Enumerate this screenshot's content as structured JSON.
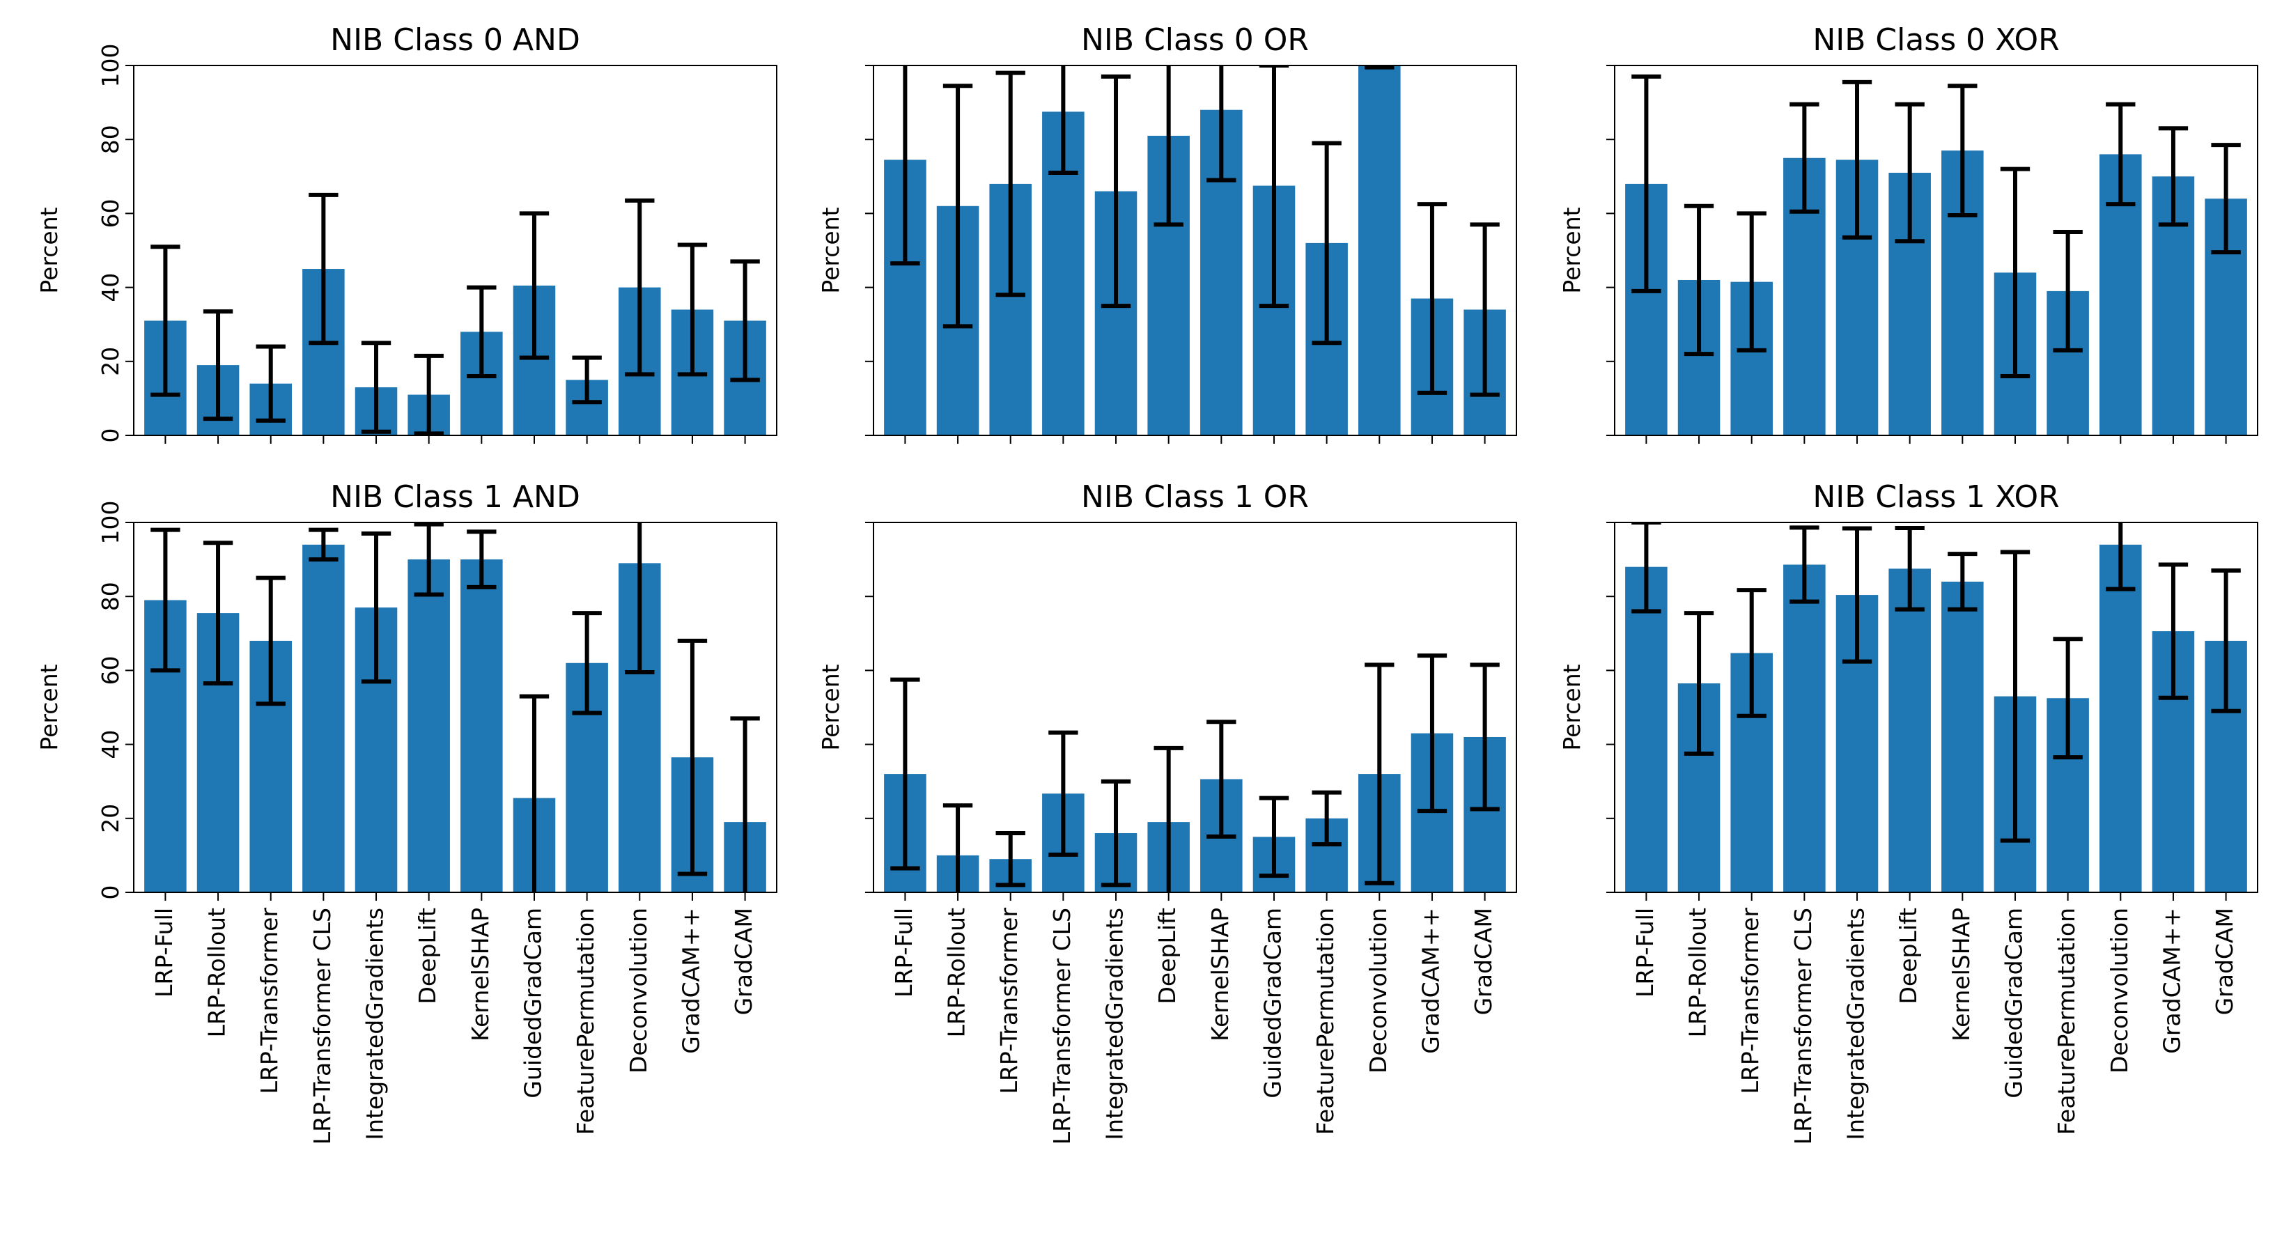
{
  "chart_data": [
    {
      "type": "bar",
      "title": "NIB Class 0 AND",
      "ylabel": "Percent",
      "color": "#1f77b4",
      "categories": [
        "LRP-Full",
        "LRP-Rollout",
        "LRP-Transformer",
        "LRP-Transformer CLS",
        "IntegratedGradients",
        "DeepLift",
        "KernelSHAP",
        "GuidedGradCam",
        "FeaturePermutation",
        "Deconvolution",
        "GradCAM++",
        "GradCAM"
      ],
      "values": [
        31,
        19,
        14,
        45,
        13,
        11,
        28,
        40.5,
        15,
        40,
        34,
        31
      ],
      "errors": [
        20,
        14.5,
        10,
        20,
        12,
        10.5,
        12,
        19.5,
        6,
        23.5,
        17.5,
        16
      ],
      "ylim": [
        0,
        100
      ],
      "yticks": [
        0,
        20,
        40,
        60,
        80,
        100
      ]
    },
    {
      "type": "bar",
      "title": "NIB Class 0 OR",
      "ylabel": "Percent",
      "color": "#1f77b4",
      "categories": [
        "LRP-Full",
        "LRP-Rollout",
        "LRP-Transformer",
        "LRP-Transformer CLS",
        "IntegratedGradients",
        "DeepLift",
        "KernelSHAP",
        "GuidedGradCam",
        "FeaturePermutation",
        "Deconvolution",
        "GradCAM++",
        "GradCAM"
      ],
      "values": [
        74.5,
        62,
        68,
        87.5,
        66,
        81,
        88,
        67.5,
        52,
        100,
        37,
        34
      ],
      "errors": [
        28,
        32.5,
        30,
        16.5,
        31,
        24,
        19,
        32.5,
        27,
        0.5,
        25.5,
        23
      ],
      "ylim": [
        0,
        100
      ],
      "yticks": [
        0,
        20,
        40,
        60,
        80,
        100
      ]
    },
    {
      "type": "bar",
      "title": "NIB Class 0 XOR",
      "ylabel": "Percent",
      "color": "#1f77b4",
      "categories": [
        "LRP-Full",
        "LRP-Rollout",
        "LRP-Transformer",
        "LRP-Transformer CLS",
        "IntegratedGradients",
        "DeepLift",
        "KernelSHAP",
        "GuidedGradCam",
        "FeaturePermutation",
        "Deconvolution",
        "GradCAM++",
        "GradCAM"
      ],
      "values": [
        68,
        42,
        41.5,
        75,
        74.5,
        71,
        77,
        44,
        39,
        76,
        70,
        64
      ],
      "errors": [
        29,
        20,
        18.5,
        14.5,
        21,
        18.5,
        17.5,
        28,
        16,
        13.5,
        13,
        14.5
      ],
      "ylim": [
        0,
        100
      ],
      "yticks": [
        0,
        20,
        40,
        60,
        80,
        100
      ]
    },
    {
      "type": "bar",
      "title": "NIB Class 1 AND",
      "ylabel": "Percent",
      "color": "#1f77b4",
      "categories": [
        "LRP-Full",
        "LRP-Rollout",
        "LRP-Transformer",
        "LRP-Transformer CLS",
        "IntegratedGradients",
        "DeepLift",
        "KernelSHAP",
        "GuidedGradCam",
        "FeaturePermutation",
        "Deconvolution",
        "GradCAM++",
        "GradCAM"
      ],
      "values": [
        79,
        75.5,
        68,
        94,
        77,
        90,
        90,
        25.5,
        62,
        89,
        36.5,
        19
      ],
      "errors": [
        19,
        19,
        17,
        4,
        20,
        9.5,
        7.5,
        27.5,
        13.5,
        29.5,
        31.5,
        28
      ],
      "ylim": [
        0,
        100
      ],
      "yticks": [
        0,
        20,
        40,
        60,
        80,
        100
      ]
    },
    {
      "type": "bar",
      "title": "NIB Class 1 OR",
      "ylabel": "Percent",
      "color": "#1f77b4",
      "categories": [
        "LRP-Full",
        "LRP-Rollout",
        "LRP-Transformer",
        "LRP-Transformer CLS",
        "IntegratedGradients",
        "DeepLift",
        "KernelSHAP",
        "GuidedGradCam",
        "FeaturePermutation",
        "Deconvolution",
        "GradCAM++",
        "GradCAM"
      ],
      "values": [
        32,
        10,
        9,
        26.7,
        16,
        19,
        30.6,
        15,
        20,
        32,
        43,
        42
      ],
      "errors": [
        25.5,
        13.5,
        7,
        16.5,
        14,
        20,
        15.5,
        10.5,
        7,
        29.5,
        21,
        19.5
      ],
      "ylim": [
        0,
        100
      ],
      "yticks": [
        0,
        20,
        40,
        60,
        80,
        100
      ]
    },
    {
      "type": "bar",
      "title": "NIB Class 1 XOR",
      "ylabel": "Percent",
      "color": "#1f77b4",
      "categories": [
        "LRP-Full",
        "LRP-Rollout",
        "LRP-Transformer",
        "LRP-Transformer CLS",
        "IntegratedGradients",
        "DeepLift",
        "KernelSHAP",
        "GuidedGradCam",
        "FeaturePermutation",
        "Deconvolution",
        "GradCAM++",
        "GradCAM"
      ],
      "values": [
        88,
        56.5,
        64.7,
        88.6,
        80.4,
        87.5,
        84,
        53,
        52.5,
        94,
        70.6,
        68
      ],
      "errors": [
        12,
        19,
        17,
        10,
        18,
        11,
        7.5,
        39,
        16,
        12,
        18,
        19
      ],
      "ylim": [
        0,
        100
      ],
      "yticks": [
        0,
        20,
        40,
        60,
        80,
        100
      ]
    }
  ]
}
